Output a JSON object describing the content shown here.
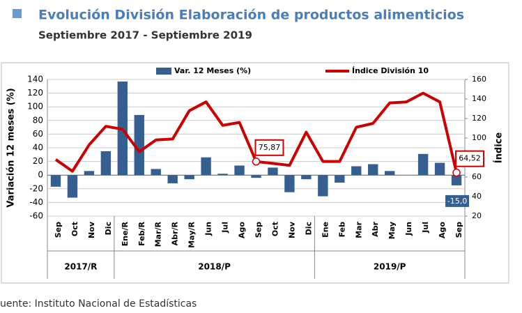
{
  "chart_data": {
    "type": "bar-line",
    "title": "Evolución División Elaboración de productos alimenticios",
    "subtitle": "Septiembre 2017 - Septiembre 2019",
    "y_label": "Variación 12 meses (%)",
    "y2_label": "Índice",
    "source": "uente: Instituto Nacional de Estadísticas",
    "categories": [
      "Sep",
      "Oct",
      "Nov",
      "Dic",
      "Ene/R",
      "Feb/R",
      "Mar/R",
      "Abr/R",
      "May/R",
      "Jun",
      "Jul",
      "Ago",
      "Sep",
      "Oct",
      "Nov",
      "Dic",
      "Ene",
      "Feb",
      "Mar",
      "Abr",
      "May",
      "Jun",
      "Jul",
      "Ago",
      "Sep"
    ],
    "groups": [
      {
        "label": "2017/R",
        "span": 4
      },
      {
        "label": "2018/P",
        "span": 12
      },
      {
        "label": "2019/P",
        "span": 9
      }
    ],
    "series": [
      {
        "name": "Var. 12 Meses (%)",
        "type": "bar",
        "color": "#365f91",
        "values": [
          -17,
          -33,
          6,
          35,
          137,
          88,
          9,
          -12,
          -6,
          26,
          2,
          14,
          -4,
          11,
          -25,
          -6,
          -31,
          -11,
          13,
          16,
          6,
          0,
          31,
          18,
          -15.0
        ],
        "value_labels": [
          null,
          null,
          null,
          null,
          null,
          null,
          null,
          null,
          null,
          null,
          null,
          null,
          null,
          null,
          null,
          null,
          null,
          null,
          null,
          null,
          null,
          null,
          null,
          null,
          "-15,0"
        ]
      },
      {
        "name": "Índice División 10",
        "type": "line",
        "axis": "y2",
        "color": "#cc0000",
        "values": [
          78,
          66,
          93,
          112,
          109,
          86,
          98,
          99,
          128,
          137,
          113,
          116,
          75.87,
          74,
          72,
          106,
          76,
          76,
          111,
          115,
          136,
          137,
          146,
          137,
          64.52
        ],
        "value_labels": [
          null,
          null,
          null,
          null,
          null,
          null,
          null,
          null,
          null,
          null,
          null,
          null,
          "75,87",
          null,
          null,
          null,
          null,
          null,
          null,
          null,
          null,
          null,
          null,
          null,
          "64,52"
        ]
      }
    ],
    "ylim": [
      -60,
      140
    ],
    "yticks": [
      -60,
      -40,
      -20,
      0,
      20,
      40,
      60,
      80,
      100,
      120,
      140
    ],
    "y2lim": [
      20,
      160
    ],
    "y2ticks": [
      20,
      40,
      60,
      80,
      100,
      120,
      140,
      160
    ]
  }
}
